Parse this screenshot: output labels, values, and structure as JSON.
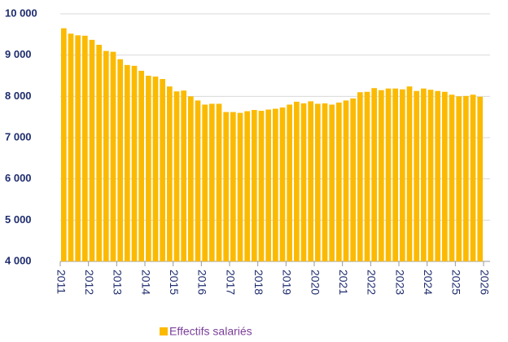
{
  "chart_data": {
    "type": "bar",
    "x": [
      2011,
      2011.25,
      2011.5,
      2011.75,
      2012,
      2012.25,
      2012.5,
      2012.75,
      2013,
      2013.25,
      2013.5,
      2013.75,
      2014,
      2014.25,
      2014.5,
      2014.75,
      2015,
      2015.25,
      2015.5,
      2015.75,
      2016,
      2016.25,
      2016.5,
      2016.75,
      2017,
      2017.25,
      2017.5,
      2017.75,
      2018,
      2018.25,
      2018.5,
      2018.75,
      2019,
      2019.25,
      2019.5,
      2019.75,
      2020,
      2020.25,
      2020.5,
      2020.75,
      2021,
      2021.25,
      2021.5,
      2021.75,
      2022,
      2022.25,
      2022.5,
      2022.75,
      2023,
      2023.25,
      2023.5,
      2023.75,
      2024,
      2024.25,
      2024.5,
      2024.75,
      2025,
      2025.25,
      2025.5,
      2025.75
    ],
    "series": [
      {
        "name": "Effectifs salariés",
        "color": "#fbba00",
        "values": [
          9650,
          9520,
          9480,
          9470,
          9370,
          9250,
          9100,
          9080,
          8900,
          8760,
          8740,
          8620,
          8500,
          8480,
          8420,
          8240,
          8120,
          8140,
          8000,
          7900,
          7800,
          7820,
          7820,
          7620,
          7620,
          7600,
          7640,
          7670,
          7650,
          7680,
          7700,
          7730,
          7800,
          7870,
          7830,
          7880,
          7820,
          7830,
          7800,
          7850,
          7900,
          7950,
          8100,
          8110,
          8200,
          8150,
          8190,
          8190,
          8170,
          8240,
          8130,
          8190,
          8160,
          8130,
          8110,
          8040,
          8000,
          8010,
          8040,
          7990
        ]
      }
    ],
    "xlim": [
      2011,
      2026
    ],
    "xticks": [
      2011,
      2012,
      2013,
      2014,
      2015,
      2016,
      2017,
      2018,
      2019,
      2020,
      2021,
      2022,
      2023,
      2024,
      2025,
      2026
    ],
    "ylim": [
      4000,
      10000
    ],
    "yticks": [
      {
        "value": 4000,
        "label": "4 000"
      },
      {
        "value": 5000,
        "label": "5 000"
      },
      {
        "value": 6000,
        "label": "6 000"
      },
      {
        "value": 7000,
        "label": "7 000"
      },
      {
        "value": 8000,
        "label": "8 000"
      },
      {
        "value": 9000,
        "label": "9 000"
      },
      {
        "value": 10000,
        "label": "10 000"
      }
    ],
    "grid": true
  }
}
